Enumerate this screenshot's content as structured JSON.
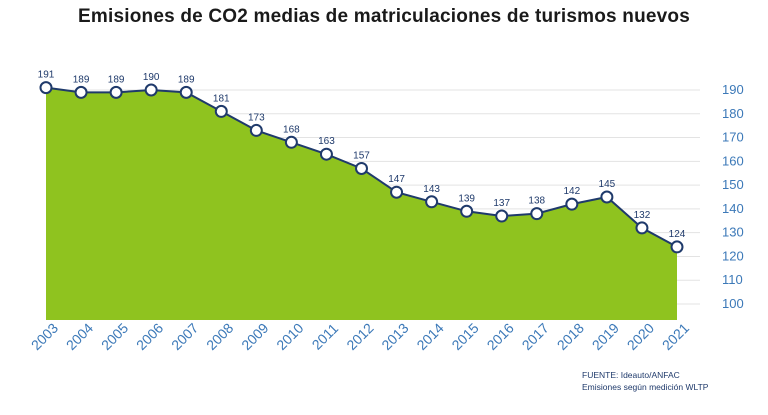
{
  "chart_data": {
    "type": "area",
    "title": "Emisiones de CO2 medias de matriculaciones de turismos nuevos",
    "xlabel": "",
    "ylabel": "",
    "x": [
      "2003",
      "2004",
      "2005",
      "2006",
      "2007",
      "2008",
      "2009",
      "2010",
      "2011",
      "2012",
      "2013",
      "2014",
      "2015",
      "2016",
      "2017",
      "2018",
      "2019",
      "2020",
      "2021"
    ],
    "series": [
      {
        "values": [
          191,
          189,
          189,
          190,
          189,
          181,
          173,
          168,
          163,
          157,
          147,
          143,
          139,
          137,
          138,
          142,
          145,
          132,
          124
        ]
      }
    ],
    "y_ticks": [
      100,
      110,
      120,
      130,
      140,
      150,
      160,
      170,
      180,
      190
    ],
    "ylim": [
      92,
      196
    ],
    "y_axis_position": "right",
    "grid": true,
    "data_labels": true,
    "legend": "none"
  },
  "source": {
    "line1": "FUENTE: Ideauto/ANFAC",
    "line2": "Emisiones según medición WLTP"
  },
  "colors": {
    "area_fill": "#8fc31f",
    "line": "#1f3a6b",
    "tick_label": "#3c79b8",
    "data_label": "#1f3a6b",
    "grid": "#e3e3e3"
  }
}
